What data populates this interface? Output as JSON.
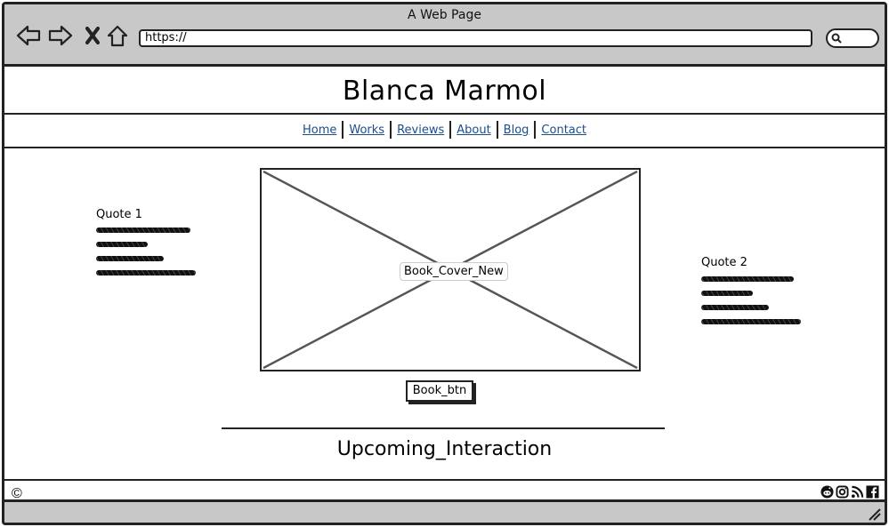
{
  "window": {
    "title": "A Web Page"
  },
  "browser": {
    "url": "https://",
    "icons": [
      "back-arrow-icon",
      "forward-arrow-icon",
      "close-x-icon",
      "home-icon",
      "search-icon"
    ]
  },
  "site": {
    "title": "Blanca Marmol"
  },
  "nav": {
    "items": [
      {
        "label": "Home"
      },
      {
        "label": "Works"
      },
      {
        "label": "Reviews"
      },
      {
        "label": "About"
      },
      {
        "label": "Blog"
      },
      {
        "label": "Contact"
      }
    ]
  },
  "quotes": [
    {
      "title": "Quote 1"
    },
    {
      "title": "Quote 2"
    }
  ],
  "hero": {
    "image_label": "Book_Cover_New",
    "button_label": "Book_btn"
  },
  "section": {
    "title": "Upcoming_Interaction"
  },
  "footer": {
    "copyright": "©",
    "social_icons": [
      "reddit-icon",
      "instagram-icon",
      "rss-icon",
      "facebook-icon"
    ]
  },
  "colors": {
    "link": "#1a4d8c",
    "chrome": "#c8c8c8",
    "ink": "#222222"
  }
}
